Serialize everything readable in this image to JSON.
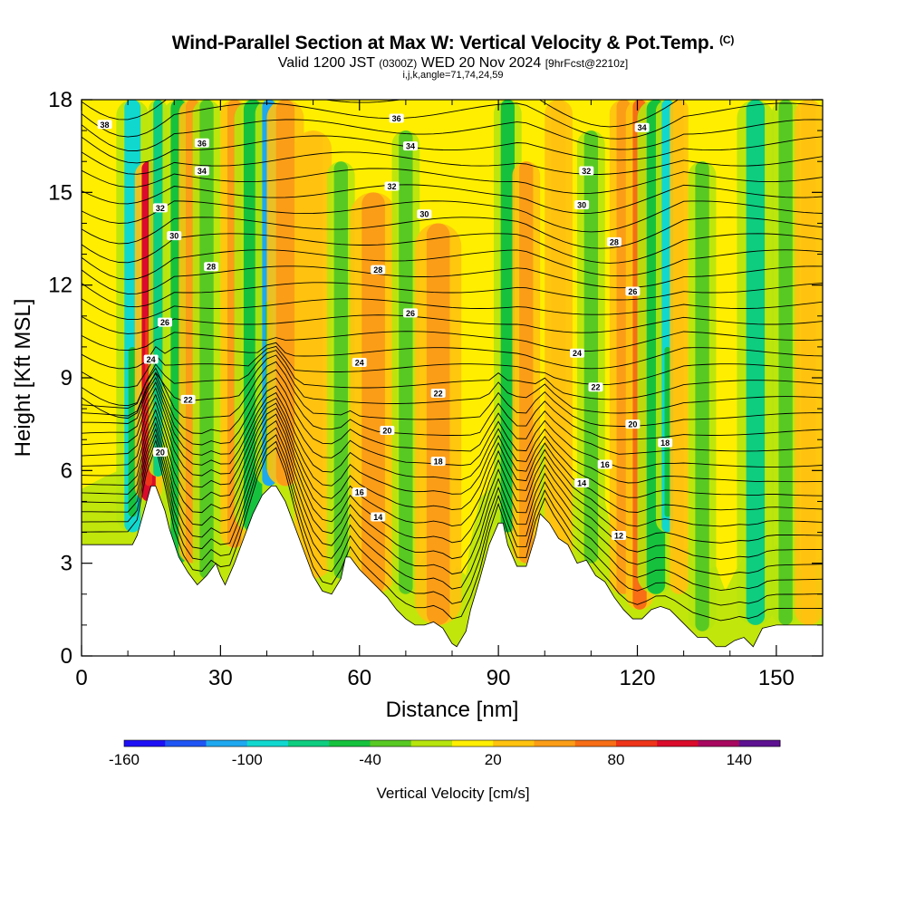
{
  "header": {
    "title": "Wind-Parallel Section at Max W: Vertical Velocity & Pot.Temp.",
    "title_tag": "(C)",
    "valid_prefix": "Valid 1200 JST",
    "valid_utc": "(0300Z)",
    "valid_date": "WED 20 Nov 2024",
    "forecast_tag": "[9hrFcst@2210z]",
    "indices": "i,j,k,angle=71,74,24,59"
  },
  "chart_data": {
    "type": "heatmap",
    "xlabel": "Distance [nm]",
    "ylabel": "Height [Kft MSL]",
    "xlim": [
      0,
      160
    ],
    "ylim": [
      0,
      18
    ],
    "x_ticks": [
      "0",
      "30",
      "60",
      "90",
      "120",
      "150"
    ],
    "x_tick_values": [
      0,
      30,
      60,
      90,
      120,
      150
    ],
    "y_ticks": [
      "0",
      "3",
      "6",
      "9",
      "12",
      "15",
      "18"
    ],
    "y_tick_values": [
      0,
      3,
      6,
      9,
      12,
      15,
      18
    ],
    "field_background": "#ffee00",
    "terrain": {
      "distance": [
        0,
        5,
        11,
        12,
        15,
        16,
        18,
        19,
        21,
        23,
        25,
        27,
        29,
        30,
        31,
        33,
        35,
        37,
        39,
        41,
        42,
        44,
        46,
        48,
        50,
        52,
        54,
        56,
        57,
        58,
        60,
        62,
        64,
        66,
        68,
        70,
        72,
        74,
        76,
        78,
        80,
        81,
        83,
        84,
        86,
        88,
        90,
        91,
        92,
        94,
        96,
        98,
        99,
        101,
        103,
        105,
        107,
        109,
        111,
        113,
        115,
        117,
        119,
        121,
        123,
        125,
        127,
        129,
        131,
        133,
        135,
        137,
        139,
        141,
        143,
        145,
        147,
        150,
        155,
        160
      ],
      "height_kft": [
        3.6,
        3.6,
        3.6,
        3.9,
        5.5,
        5.5,
        4.7,
        4.1,
        3.2,
        2.7,
        2.3,
        2.6,
        3.0,
        2.6,
        2.3,
        3.0,
        3.8,
        4.6,
        5.2,
        5.5,
        5.5,
        5.0,
        4.2,
        3.4,
        2.6,
        2.1,
        2.0,
        2.5,
        3.2,
        3.2,
        2.8,
        2.5,
        2.2,
        1.9,
        1.5,
        1.2,
        1.0,
        1.0,
        1.1,
        0.9,
        0.4,
        0.3,
        0.8,
        1.5,
        2.5,
        3.6,
        4.3,
        4.3,
        3.6,
        2.9,
        2.9,
        3.9,
        4.6,
        4.3,
        3.8,
        3.6,
        3.0,
        3.1,
        2.6,
        2.4,
        1.9,
        1.5,
        1.2,
        1.2,
        1.5,
        1.6,
        1.5,
        1.2,
        0.9,
        0.6,
        0.6,
        0.3,
        0.3,
        0.5,
        0.6,
        0.3,
        0.9,
        1.0,
        1.0,
        1.0
      ]
    },
    "vertical_velocity_features": [
      {
        "x": 11,
        "ybot": 4.0,
        "ytop": 18,
        "w": 3.5,
        "value": -100
      },
      {
        "x": 14.5,
        "ybot": 5.0,
        "ytop": 16,
        "w": 3.0,
        "value": 110
      },
      {
        "x": 16.5,
        "ybot": 5.8,
        "ytop": 18,
        "w": 2.0,
        "value": -80
      },
      {
        "x": 21,
        "ybot": 3.0,
        "ytop": 18,
        "w": 3.5,
        "value": -60
      },
      {
        "x": 24,
        "ybot": 3.0,
        "ytop": 18,
        "w": 3.0,
        "value": 50
      },
      {
        "x": 27,
        "ybot": 2.5,
        "ytop": 18,
        "w": 3.0,
        "value": -40
      },
      {
        "x": 33,
        "ybot": 3.5,
        "ytop": 18,
        "w": 3.0,
        "value": 40
      },
      {
        "x": 37,
        "ybot": 4.0,
        "ytop": 18,
        "w": 4.0,
        "value": -60
      },
      {
        "x": 40.5,
        "ybot": 5.5,
        "ytop": 18,
        "w": 3.0,
        "value": -110
      },
      {
        "x": 44,
        "ybot": 5.5,
        "ytop": 18,
        "w": 4.0,
        "value": 50
      },
      {
        "x": 50,
        "ybot": 2.5,
        "ytop": 17,
        "w": 4.0,
        "value": 30
      },
      {
        "x": 56,
        "ybot": 2.5,
        "ytop": 16,
        "w": 3.0,
        "value": -40
      },
      {
        "x": 63,
        "ybot": 2.0,
        "ytop": 15,
        "w": 5.0,
        "value": 45
      },
      {
        "x": 70,
        "ybot": 2.0,
        "ytop": 17,
        "w": 3.0,
        "value": -35
      },
      {
        "x": 77,
        "ybot": 1.0,
        "ytop": 14,
        "w": 5.0,
        "value": 40
      },
      {
        "x": 92,
        "ybot": 4.0,
        "ytop": 18,
        "w": 3.0,
        "value": -45
      },
      {
        "x": 96,
        "ybot": 3.0,
        "ytop": 16,
        "w": 3.0,
        "value": 40
      },
      {
        "x": 103,
        "ybot": 3.0,
        "ytop": 18,
        "w": 3.0,
        "value": 35
      },
      {
        "x": 110,
        "ybot": 3.0,
        "ytop": 17,
        "w": 3.0,
        "value": -35
      },
      {
        "x": 117,
        "ybot": 2.0,
        "ytop": 18,
        "w": 3.0,
        "value": 50
      },
      {
        "x": 120.5,
        "ybot": 1.5,
        "ytop": 18,
        "w": 3.0,
        "value": 70
      },
      {
        "x": 124,
        "ybot": 2.0,
        "ytop": 18,
        "w": 4.0,
        "value": -60
      },
      {
        "x": 126.5,
        "ybot": 4.0,
        "ytop": 18,
        "w": 2.5,
        "value": -90
      },
      {
        "x": 129,
        "ybot": 2.0,
        "ytop": 18,
        "w": 2.0,
        "value": 30
      },
      {
        "x": 134,
        "ybot": 0.8,
        "ytop": 16,
        "w": 3.0,
        "value": -40
      },
      {
        "x": 145.5,
        "ybot": 1.0,
        "ytop": 18,
        "w": 4.0,
        "value": -80
      },
      {
        "x": 152,
        "ybot": 1.0,
        "ytop": 18,
        "w": 3.0,
        "value": -30
      },
      {
        "x": 157,
        "ybot": 1.0,
        "ytop": 18,
        "w": 3.0,
        "value": 30
      }
    ],
    "potential_temperature_contours": {
      "labels": [
        {
          "text": "38",
          "x": 5,
          "y": 17.2
        },
        {
          "text": "36",
          "x": 26,
          "y": 16.6
        },
        {
          "text": "34",
          "x": 26,
          "y": 15.7
        },
        {
          "text": "32",
          "x": 17,
          "y": 14.5
        },
        {
          "text": "30",
          "x": 20,
          "y": 13.6
        },
        {
          "text": "28",
          "x": 28,
          "y": 12.6
        },
        {
          "text": "26",
          "x": 18,
          "y": 10.8
        },
        {
          "text": "24",
          "x": 15,
          "y": 9.6
        },
        {
          "text": "22",
          "x": 23,
          "y": 8.3
        },
        {
          "text": "20",
          "x": 17,
          "y": 6.6
        },
        {
          "text": "36",
          "x": 68,
          "y": 17.4
        },
        {
          "text": "34",
          "x": 71,
          "y": 16.5
        },
        {
          "text": "32",
          "x": 67,
          "y": 15.2
        },
        {
          "text": "30",
          "x": 74,
          "y": 14.3
        },
        {
          "text": "28",
          "x": 64,
          "y": 12.5
        },
        {
          "text": "26",
          "x": 71,
          "y": 11.1
        },
        {
          "text": "24",
          "x": 60,
          "y": 9.5
        },
        {
          "text": "22",
          "x": 77,
          "y": 8.5
        },
        {
          "text": "20",
          "x": 66,
          "y": 7.3
        },
        {
          "text": "18",
          "x": 77,
          "y": 6.3
        },
        {
          "text": "16",
          "x": 60,
          "y": 5.3
        },
        {
          "text": "14",
          "x": 64,
          "y": 4.5
        },
        {
          "text": "34",
          "x": 121,
          "y": 17.1
        },
        {
          "text": "32",
          "x": 109,
          "y": 15.7
        },
        {
          "text": "30",
          "x": 108,
          "y": 14.6
        },
        {
          "text": "28",
          "x": 115,
          "y": 13.4
        },
        {
          "text": "26",
          "x": 119,
          "y": 11.8
        },
        {
          "text": "24",
          "x": 107,
          "y": 9.8
        },
        {
          "text": "22",
          "x": 111,
          "y": 8.7
        },
        {
          "text": "20",
          "x": 119,
          "y": 7.5
        },
        {
          "text": "18",
          "x": 126,
          "y": 6.9
        },
        {
          "text": "16",
          "x": 113,
          "y": 6.2
        },
        {
          "text": "14",
          "x": 108,
          "y": 5.6
        },
        {
          "text": "12",
          "x": 116,
          "y": 3.9
        }
      ]
    },
    "colorbar": {
      "label": "Vertical Velocity [cm/s]",
      "tick_labels": [
        "-160",
        "-100",
        "-40",
        "20",
        "80",
        "140"
      ],
      "tick_values": [
        -160,
        -100,
        -40,
        20,
        80,
        140
      ],
      "levels": [
        -160,
        -140,
        -120,
        -100,
        -80,
        -60,
        -40,
        -20,
        0,
        20,
        40,
        60,
        80,
        100,
        120,
        140,
        160
      ],
      "colors": [
        "#1e10f5",
        "#1f55f4",
        "#1ea8f0",
        "#11d8cf",
        "#0ecd7f",
        "#16c23d",
        "#58c923",
        "#b6e40d",
        "#ffee00",
        "#ffc20f",
        "#fb9d17",
        "#f76e16",
        "#ee3419",
        "#da0b2b",
        "#a8085f",
        "#5d1291"
      ]
    }
  }
}
